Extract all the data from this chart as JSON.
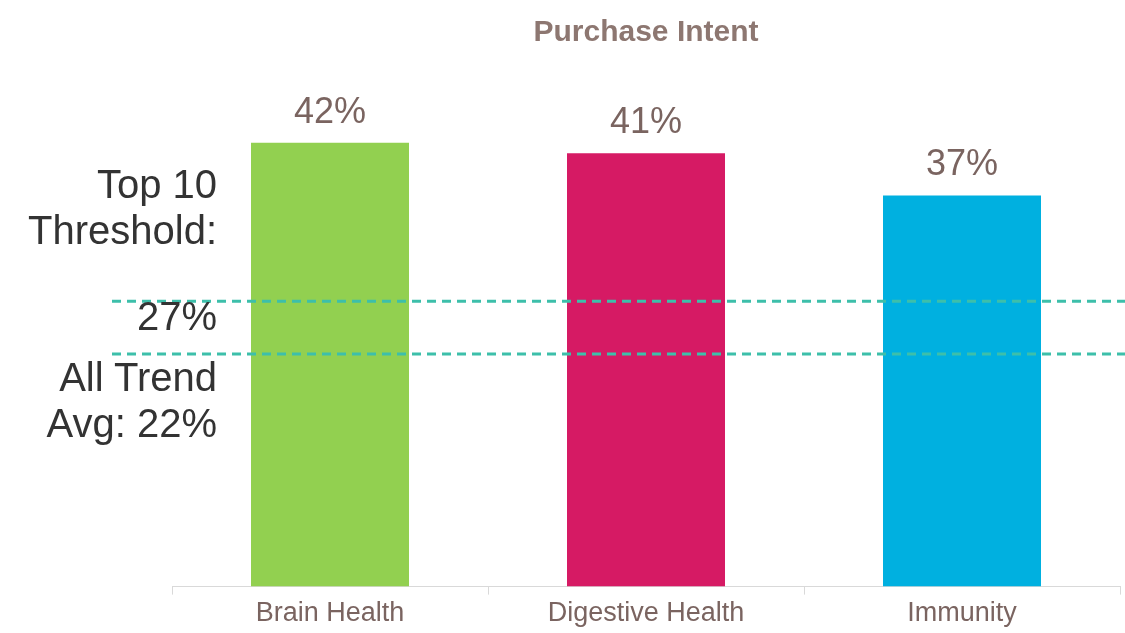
{
  "chart_data": {
    "type": "bar",
    "title": "Purchase Intent",
    "categories": [
      "Brain Health",
      "Digestive Health",
      "Immunity"
    ],
    "values": [
      42,
      41,
      37
    ],
    "colors": [
      "#92d050",
      "#d61a64",
      "#00b0e0"
    ],
    "value_labels": [
      "42%",
      "41%",
      "37%"
    ],
    "ref_lines": [
      {
        "axis": "y",
        "value": 27,
        "label": "Top 10 Threshold: 27%",
        "color": "#3dbfaa",
        "line_style": "dashed"
      },
      {
        "axis": "y",
        "value": 22,
        "label": "All Trend Avg: 22%",
        "color": "#3dbfaa",
        "line_style": "dashed"
      }
    ],
    "legend": false
  }
}
